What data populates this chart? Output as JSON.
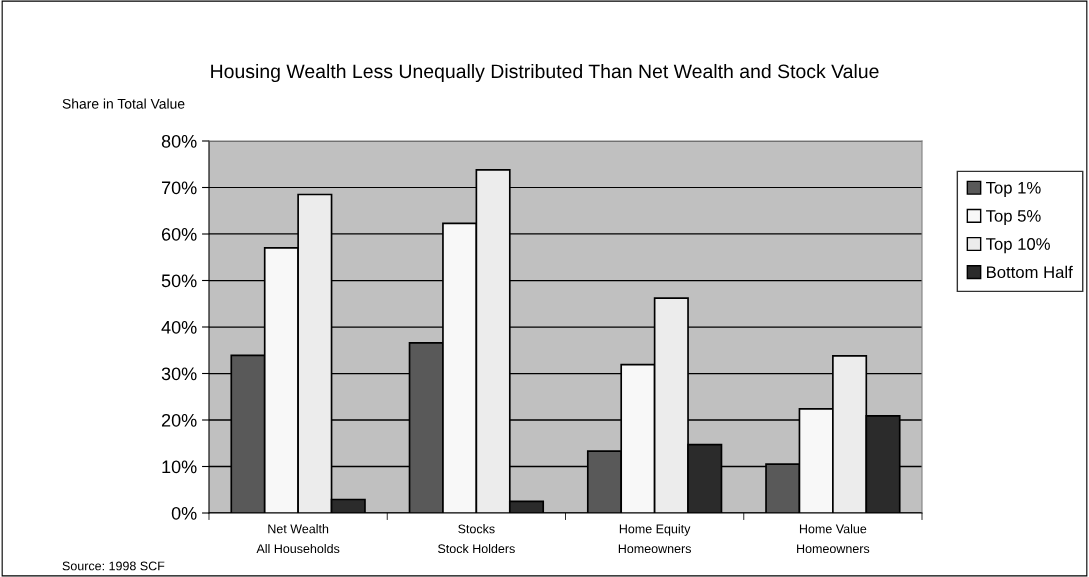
{
  "chart_data": {
    "type": "bar",
    "title": "Housing Wealth Less Unequally Distributed Than Net Wealth and Stock Value",
    "ylabel": "Share in Total Value",
    "categories": [
      "Net Wealth\nAll Households",
      "Stocks\nStock Holders",
      "Home Equity\nHomeowners",
      "Home Value\nHomeowners"
    ],
    "series": [
      {
        "name": "Top 1%",
        "color": "#595959",
        "values": [
          33.9,
          36.6,
          13.3,
          10.5
        ]
      },
      {
        "name": "Top 5%",
        "color": "#f8f8f8",
        "values": [
          57.0,
          62.3,
          31.9,
          22.4
        ]
      },
      {
        "name": "Top 10%",
        "color": "#ececec",
        "values": [
          68.5,
          73.8,
          46.2,
          33.8
        ]
      },
      {
        "name": "Bottom Half",
        "color": "#2b2b2b",
        "values": [
          2.9,
          2.5,
          14.7,
          20.9
        ]
      }
    ],
    "ylim": [
      0,
      80
    ],
    "yticks": [
      {
        "value": 0,
        "label": "0%"
      },
      {
        "value": 10,
        "label": "10%"
      },
      {
        "value": 20,
        "label": "20%"
      },
      {
        "value": 30,
        "label": "30%"
      },
      {
        "value": 40,
        "label": "40%"
      },
      {
        "value": 50,
        "label": "50%"
      },
      {
        "value": 60,
        "label": "60%"
      },
      {
        "value": 70,
        "label": "70%"
      },
      {
        "value": 80,
        "label": "80%"
      }
    ],
    "grid": "y",
    "legend": "right",
    "annotations": [
      "Source: 1998 SCF"
    ]
  }
}
